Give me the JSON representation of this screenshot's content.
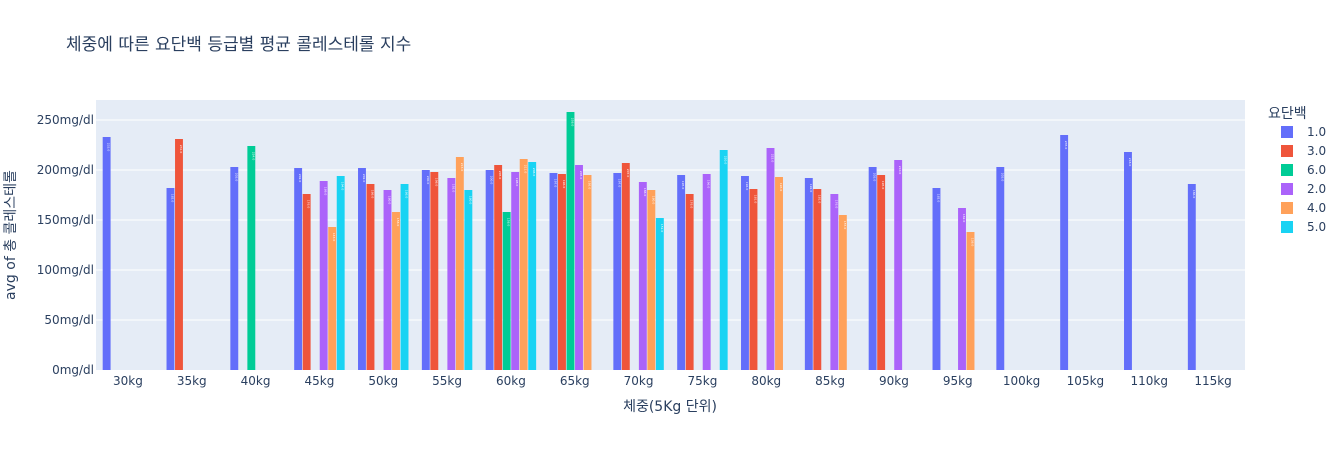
{
  "chart_data": {
    "type": "bar",
    "title": "체중에 따른 요단백 등급별 평균 콜레스테롤 지수",
    "xlabel": "체중(5Kg 단위)",
    "ylabel": "avg of 총 콜레스테롤",
    "ylim": [
      0,
      270
    ],
    "y_ticks": [
      0,
      50,
      100,
      150,
      200,
      250
    ],
    "y_tick_suffix": "mg/dl",
    "categories": [
      "30kg",
      "35kg",
      "40kg",
      "45kg",
      "50kg",
      "55kg",
      "60kg",
      "65kg",
      "70kg",
      "75kg",
      "80kg",
      "85kg",
      "90kg",
      "95kg",
      "100kg",
      "105kg",
      "110kg",
      "115kg"
    ],
    "legend_title": "요단백",
    "legend_position": "right",
    "grid": true,
    "series": [
      {
        "name": "1.0",
        "color": "#636efa",
        "values": [
          233,
          182,
          203,
          202,
          202,
          200,
          200,
          197,
          197,
          195,
          194,
          192,
          203,
          182,
          203,
          235,
          218,
          186
        ]
      },
      {
        "name": "3.0",
        "color": "#ef553b",
        "values": [
          null,
          231,
          null,
          176,
          186,
          198,
          205,
          196,
          207,
          176,
          181,
          181,
          195,
          null,
          null,
          null,
          null,
          null
        ]
      },
      {
        "name": "6.0",
        "color": "#00cc96",
        "values": [
          null,
          null,
          224,
          null,
          null,
          null,
          158,
          258,
          null,
          null,
          null,
          null,
          null,
          null,
          null,
          null,
          null,
          null
        ]
      },
      {
        "name": "2.0",
        "color": "#ab63fa",
        "values": [
          null,
          null,
          null,
          189,
          180,
          192,
          198,
          205,
          188,
          196,
          222,
          176,
          210,
          162,
          null,
          null,
          null,
          null
        ]
      },
      {
        "name": "4.0",
        "color": "#ffa15a",
        "values": [
          null,
          null,
          null,
          143,
          158,
          213,
          211,
          195,
          180,
          null,
          193,
          155,
          null,
          138,
          null,
          null,
          null,
          null
        ]
      },
      {
        "name": "5.0",
        "color": "#19d3f3",
        "values": [
          null,
          null,
          null,
          194,
          186,
          180,
          208,
          null,
          152,
          220,
          null,
          null,
          null,
          null,
          null,
          null,
          null,
          null
        ]
      }
    ]
  }
}
